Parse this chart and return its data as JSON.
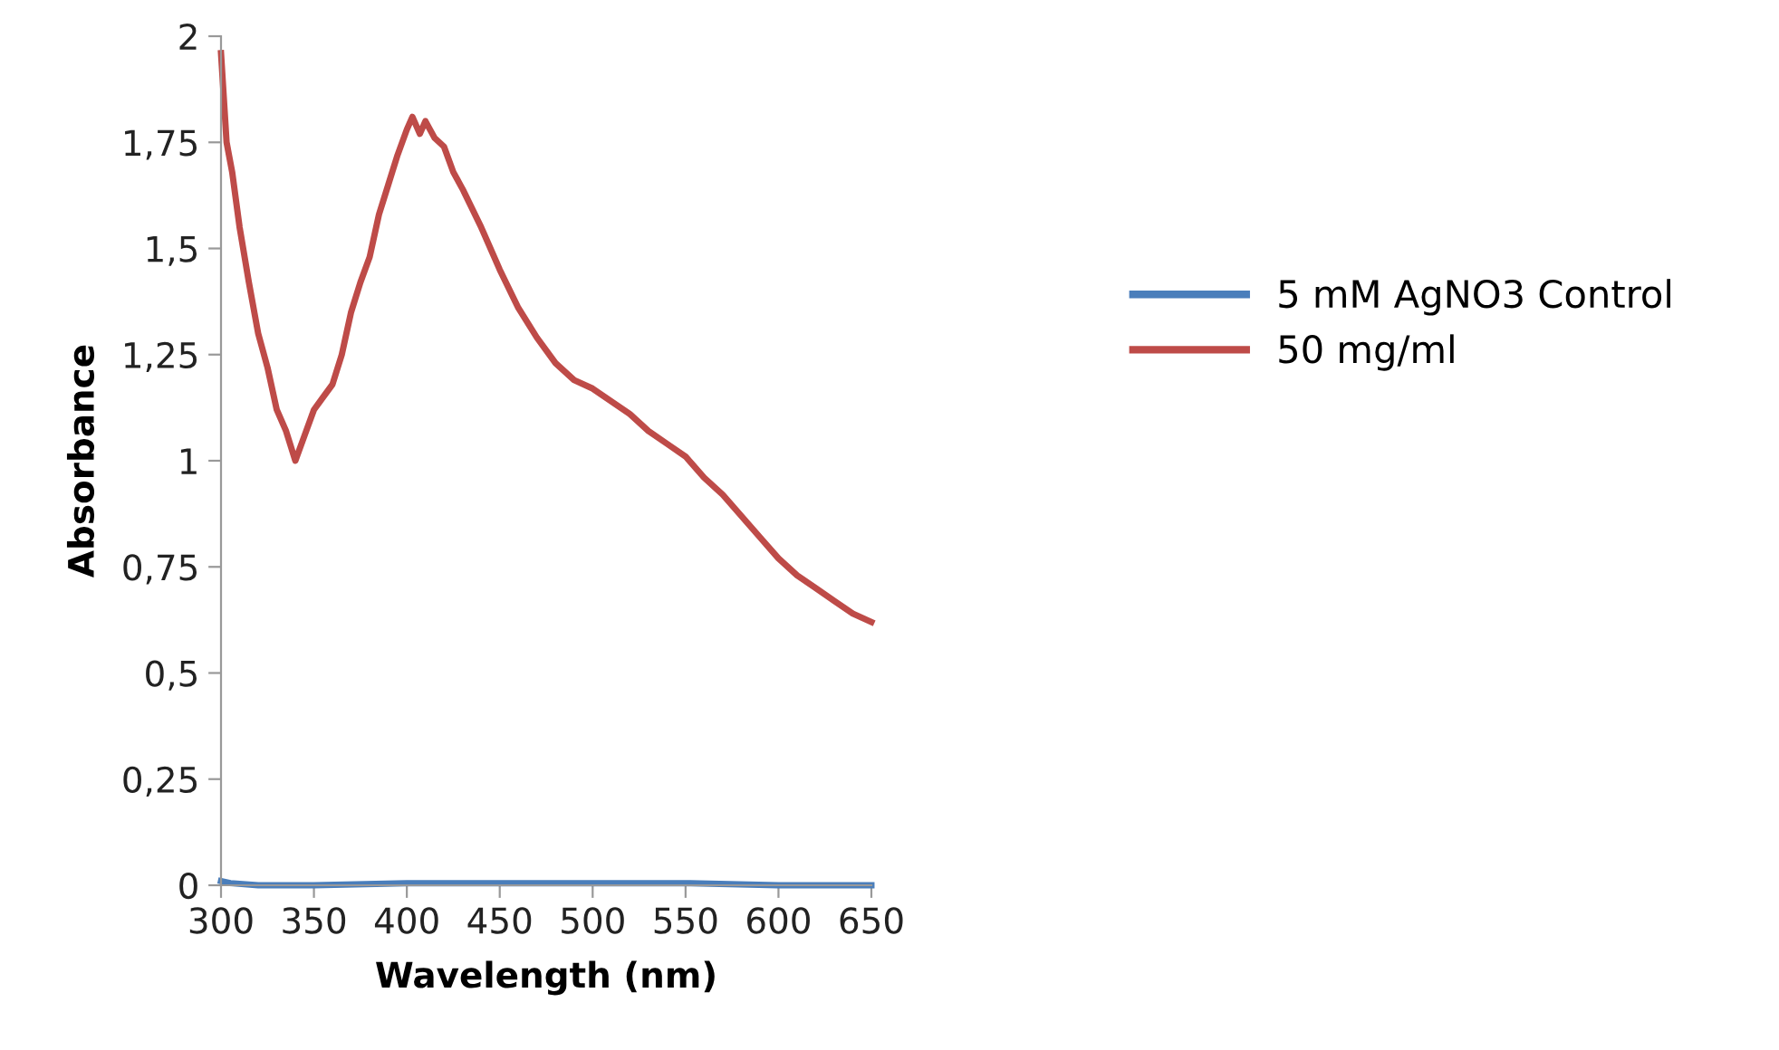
{
  "chart_data": {
    "type": "line",
    "xlabel": "Wavelength (nm)",
    "ylabel": "Absorbance",
    "xlim": [
      300,
      650
    ],
    "xticks": [
      300,
      350,
      400,
      450,
      500,
      550,
      600,
      650
    ],
    "ylim": [
      0,
      2
    ],
    "yticks": [
      0,
      {
        "value": 0.25,
        "label": "0,25"
      },
      {
        "value": 0.5,
        "label": "0,5"
      },
      {
        "value": 0.75,
        "label": "0,75"
      },
      1,
      {
        "value": 1.25,
        "label": "1,25"
      },
      {
        "value": 1.5,
        "label": "1,5"
      },
      {
        "value": 1.75,
        "label": "1,75"
      },
      2
    ],
    "grid": false,
    "legend": "right",
    "marker": "none",
    "line_style": "solid",
    "series": [
      {
        "name": "5 mM AgNO3 Control",
        "color": "#4a7ebb",
        "x": [
          300,
          305,
          320,
          350,
          400,
          450,
          500,
          550,
          600,
          650
        ],
        "values": [
          0.01,
          0.005,
          0.0,
          0.0,
          0.005,
          0.005,
          0.005,
          0.005,
          0.0,
          0.0
        ]
      },
      {
        "name": "50 mg/ml",
        "color": "#be4b48",
        "x": [
          300,
          303,
          306,
          310,
          315,
          320,
          325,
          330,
          335,
          340,
          345,
          350,
          355,
          360,
          365,
          370,
          375,
          380,
          385,
          390,
          395,
          400,
          403,
          407,
          410,
          415,
          420,
          425,
          430,
          440,
          450,
          460,
          470,
          480,
          490,
          500,
          510,
          520,
          530,
          540,
          550,
          560,
          570,
          580,
          590,
          600,
          610,
          620,
          630,
          640,
          650
        ],
        "values": [
          1.96,
          1.75,
          1.68,
          1.55,
          1.42,
          1.3,
          1.22,
          1.12,
          1.07,
          1.0,
          1.06,
          1.12,
          1.15,
          1.18,
          1.25,
          1.35,
          1.42,
          1.48,
          1.58,
          1.65,
          1.72,
          1.78,
          1.81,
          1.77,
          1.8,
          1.76,
          1.74,
          1.68,
          1.64,
          1.55,
          1.45,
          1.36,
          1.29,
          1.23,
          1.19,
          1.17,
          1.14,
          1.11,
          1.07,
          1.04,
          1.01,
          0.96,
          0.92,
          0.87,
          0.82,
          0.77,
          0.73,
          0.7,
          0.67,
          0.64,
          0.62
        ]
      }
    ]
  }
}
